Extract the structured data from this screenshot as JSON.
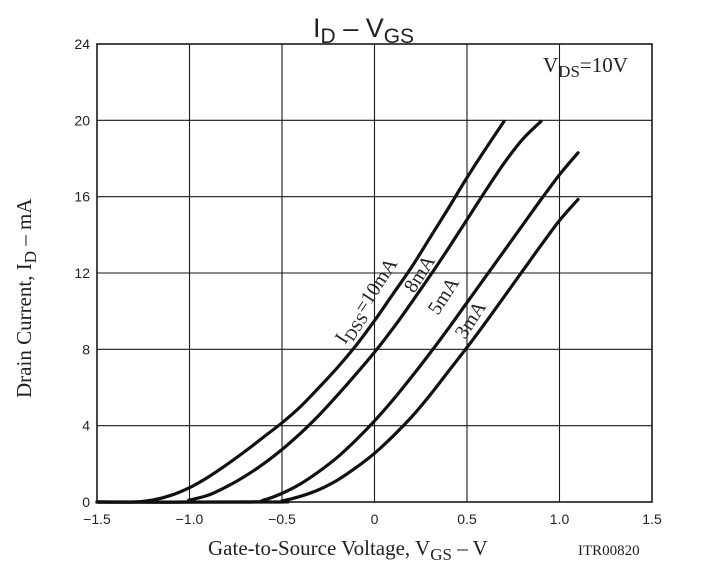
{
  "chart_data": {
    "type": "line",
    "title": {
      "main": "I",
      "sub1": "D",
      "sep": " – V",
      "sub2": "GS"
    },
    "xlabel": {
      "main": "Gate-to-Source Voltage, V",
      "sub": "GS",
      "unit": "  –  V"
    },
    "ylabel": {
      "main": "Drain Current, I",
      "sub": "D",
      "unit": "  –  mA"
    },
    "xlim": [
      -1.5,
      1.5
    ],
    "ylim": [
      0,
      24
    ],
    "xticks": [
      -1.5,
      -1.0,
      -0.5,
      0,
      0.5,
      1.0,
      1.5
    ],
    "xtick_labels": [
      "−1.5",
      "−1.0",
      "−0.5",
      "0",
      "0.5",
      "1.0",
      "1.5"
    ],
    "yticks": [
      0,
      4,
      8,
      12,
      16,
      20,
      24
    ],
    "ytick_labels": [
      "0",
      "4",
      "8",
      "12",
      "16",
      "20",
      "24"
    ],
    "grid": true,
    "condition": {
      "main": "V",
      "sub": "DS",
      "rest": "=10V"
    },
    "figure_id": "ITR00820",
    "series": [
      {
        "name": "IDSS=10mA",
        "x": [
          -1.5,
          -1.3,
          -1.2,
          -1.1,
          -1.0,
          -0.9,
          -0.8,
          -0.7,
          -0.6,
          -0.5,
          -0.4,
          -0.3,
          -0.2,
          -0.1,
          0.0,
          0.1,
          0.2,
          0.3,
          0.4,
          0.5,
          0.6,
          0.7
        ],
        "y": [
          0,
          0,
          0.1,
          0.35,
          0.75,
          1.3,
          1.95,
          2.65,
          3.4,
          4.15,
          5.0,
          6.0,
          7.05,
          8.2,
          9.5,
          10.9,
          12.3,
          13.85,
          15.4,
          17.0,
          18.5,
          19.95
        ]
      },
      {
        "name": "8mA",
        "x": [
          -1.5,
          -1.05,
          -1.0,
          -0.9,
          -0.8,
          -0.7,
          -0.6,
          -0.5,
          -0.4,
          -0.3,
          -0.2,
          -0.1,
          0.0,
          0.1,
          0.2,
          0.3,
          0.4,
          0.5,
          0.6,
          0.7,
          0.8,
          0.9
        ],
        "y": [
          0,
          0,
          0.1,
          0.35,
          0.8,
          1.35,
          2.0,
          2.75,
          3.6,
          4.55,
          5.6,
          6.7,
          7.85,
          9.1,
          10.45,
          11.85,
          13.3,
          14.8,
          16.3,
          17.75,
          19.0,
          19.95
        ]
      },
      {
        "name": "5mA",
        "x": [
          -1.5,
          -0.7,
          -0.6,
          -0.5,
          -0.4,
          -0.3,
          -0.2,
          -0.1,
          0.0,
          0.1,
          0.2,
          0.3,
          0.4,
          0.5,
          0.6,
          0.7,
          0.8,
          0.9,
          1.0,
          1.1
        ],
        "y": [
          0,
          0,
          0.1,
          0.45,
          0.95,
          1.6,
          2.35,
          3.25,
          4.25,
          5.35,
          6.55,
          7.8,
          9.1,
          10.45,
          11.8,
          13.15,
          14.5,
          15.85,
          17.15,
          18.3
        ]
      },
      {
        "name": "3mA",
        "x": [
          -1.5,
          -0.55,
          -0.5,
          -0.4,
          -0.3,
          -0.2,
          -0.1,
          0.0,
          0.1,
          0.2,
          0.3,
          0.4,
          0.5,
          0.6,
          0.7,
          0.8,
          0.9,
          1.0,
          1.1
        ],
        "y": [
          0,
          0,
          0.05,
          0.3,
          0.65,
          1.15,
          1.8,
          2.55,
          3.45,
          4.45,
          5.6,
          6.85,
          8.1,
          9.4,
          10.75,
          12.1,
          13.45,
          14.75,
          15.85
        ]
      }
    ],
    "curve_labels": [
      {
        "main": "I",
        "sub": "DSS",
        "rest": "=10mA"
      },
      {
        "main": "8mA"
      },
      {
        "main": "5mA"
      },
      {
        "main": "3mA"
      }
    ]
  }
}
